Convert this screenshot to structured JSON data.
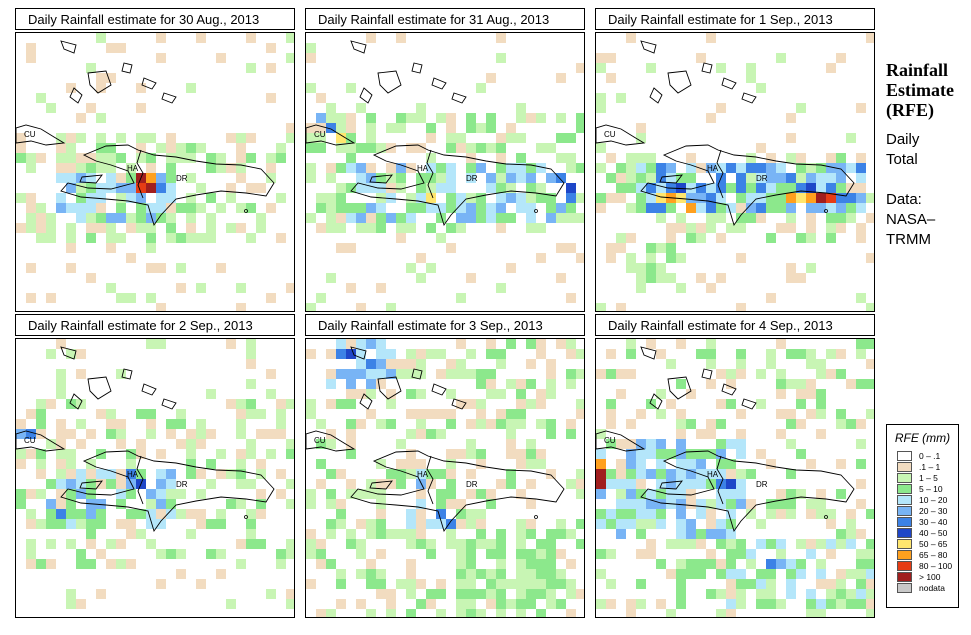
{
  "panels": [
    {
      "title": "Daily Rainfall estimate for  30 Aug., 2013"
    },
    {
      "title": "Daily Rainfall estimate for  31 Aug., 2013"
    },
    {
      "title": "Daily Rainfall estimate for  1 Sep., 2013"
    },
    {
      "title": "Daily Rainfall estimate for  2 Sep., 2013"
    },
    {
      "title": "Daily Rainfall estimate for  3 Sep., 2013"
    },
    {
      "title": "Daily Rainfall estimate for  4 Sep., 2013"
    }
  ],
  "map_labels": {
    "cuba": "CU",
    "haiti": "HA",
    "dominican_republic": "DR"
  },
  "side": {
    "title_line1": "Rainfall",
    "title_line2": "Estimate",
    "title_line3": "(RFE)",
    "desc_line1": "Daily",
    "desc_line2": "Total",
    "data_line1": "Data:",
    "data_line2": "NASA–",
    "data_line3": "TRMM"
  },
  "legend": {
    "title": "RFE (mm)",
    "items": [
      {
        "label": "0 – .1",
        "color": "#ffffff"
      },
      {
        "label": ".1 – 1",
        "color": "#f2dcc0"
      },
      {
        "label": "1 – 5",
        "color": "#c8f5b4"
      },
      {
        "label": "5 – 10",
        "color": "#8ce88c"
      },
      {
        "label": "10 – 20",
        "color": "#b4e6fa"
      },
      {
        "label": "20 – 30",
        "color": "#78b4f5"
      },
      {
        "label": "30 – 40",
        "color": "#3c82e6"
      },
      {
        "label": "40 – 50",
        "color": "#1e46c8"
      },
      {
        "label": "50 – 65",
        "color": "#ffe66e"
      },
      {
        "label": "65 – 80",
        "color": "#ffa01e"
      },
      {
        "label": "80 – 100",
        "color": "#e63c14"
      },
      {
        "label": "> 100",
        "color": "#a01e1e"
      },
      {
        "label": "nodata",
        "color": "#c8c8c8"
      }
    ]
  }
}
